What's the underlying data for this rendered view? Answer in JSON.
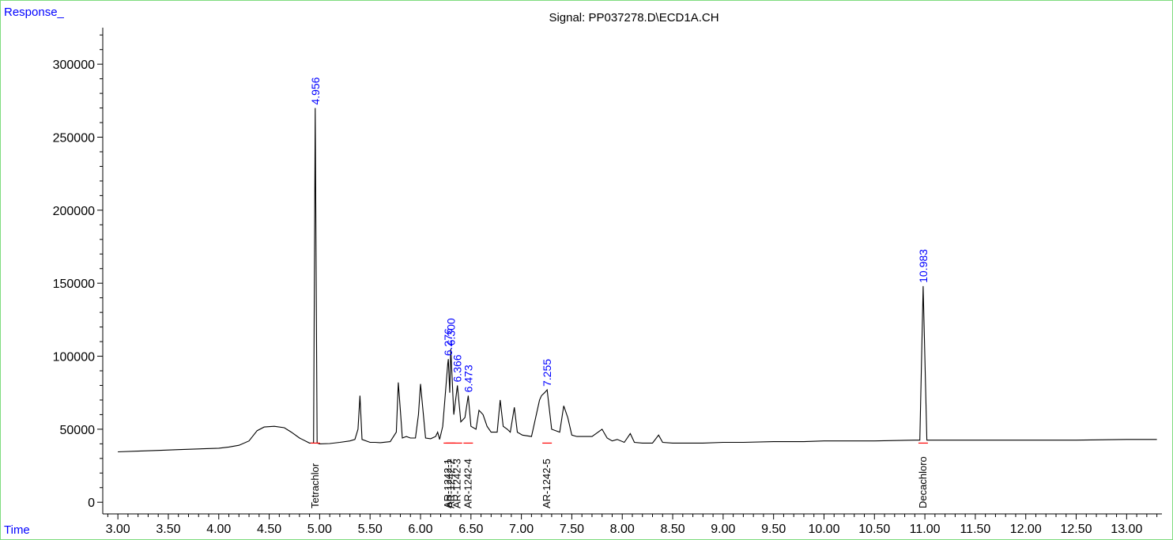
{
  "chart_data": {
    "type": "line",
    "title": "Signal: PP037278.D\\ECD1A.CH",
    "ylabel": "Response_",
    "xlabel": "Time",
    "xlim": [
      2.85,
      13.35
    ],
    "ylim": [
      -8000,
      325000
    ],
    "x_ticks": [
      "3.00",
      "3.50",
      "4.00",
      "4.50",
      "5.00",
      "5.50",
      "6.00",
      "6.50",
      "7.00",
      "7.50",
      "8.00",
      "8.50",
      "9.00",
      "9.50",
      "10.00",
      "10.50",
      "11.00",
      "11.50",
      "12.00",
      "12.50",
      "13.00"
    ],
    "y_ticks": [
      "0",
      "50000",
      "100000",
      "150000",
      "200000",
      "250000",
      "300000"
    ],
    "series": [
      {
        "x": [
          3.0,
          3.2,
          3.4,
          3.6,
          3.8,
          4.0,
          4.1,
          4.2,
          4.3,
          4.38,
          4.45,
          4.55,
          4.65,
          4.72,
          4.8,
          4.9,
          4.94,
          4.956,
          4.975,
          5.0,
          5.1,
          5.2,
          5.3,
          5.35,
          5.38,
          5.4,
          5.42,
          5.5,
          5.55,
          5.6,
          5.7,
          5.76,
          5.78,
          5.8,
          5.82,
          5.86,
          5.9,
          5.95,
          5.98,
          6.0,
          6.05,
          6.1,
          6.15,
          6.17,
          6.19,
          6.22,
          6.27,
          6.276,
          6.29,
          6.3,
          6.33,
          6.366,
          6.4,
          6.44,
          6.473,
          6.5,
          6.55,
          6.58,
          6.62,
          6.66,
          6.7,
          6.76,
          6.79,
          6.82,
          6.86,
          6.89,
          6.93,
          6.96,
          7.01,
          7.1,
          7.18,
          7.2,
          7.23,
          7.255,
          7.3,
          7.38,
          7.42,
          7.46,
          7.5,
          7.55,
          7.62,
          7.7,
          7.74,
          7.8,
          7.85,
          7.9,
          7.95,
          8.02,
          8.08,
          8.12,
          8.2,
          8.3,
          8.36,
          8.4,
          8.5,
          8.6,
          8.8,
          9.0,
          9.2,
          9.5,
          9.8,
          10.0,
          10.5,
          10.9,
          10.95,
          10.983,
          11.02,
          11.1,
          11.5,
          12.0,
          12.5,
          13.0,
          13.3
        ],
        "y": [
          34500,
          35000,
          35500,
          36000,
          36500,
          37000,
          37800,
          39000,
          42000,
          49000,
          51500,
          52000,
          51000,
          48000,
          44000,
          40500,
          40500,
          270000,
          40500,
          40000,
          40200,
          41000,
          42000,
          43000,
          50000,
          73000,
          43000,
          41000,
          41000,
          40800,
          41500,
          48000,
          82000,
          63000,
          44000,
          45000,
          44000,
          44000,
          60000,
          81000,
          44000,
          43500,
          45000,
          48000,
          43000,
          52000,
          95000,
          98000,
          75000,
          105000,
          60000,
          80000,
          55000,
          58000,
          73000,
          52000,
          50000,
          63000,
          60000,
          52000,
          48000,
          48000,
          70000,
          52000,
          50000,
          48000,
          65000,
          48000,
          46000,
          45000,
          70000,
          73000,
          75000,
          77000,
          50000,
          48000,
          66000,
          58000,
          46000,
          45000,
          45000,
          45000,
          47000,
          50000,
          44000,
          42000,
          43000,
          41000,
          47000,
          41000,
          40500,
          40500,
          46000,
          41000,
          40500,
          40500,
          40500,
          41000,
          41000,
          41500,
          41500,
          42000,
          42000,
          42500,
          42500,
          148000,
          42500,
          42500,
          42500,
          42500,
          42500,
          43000,
          43000
        ]
      }
    ],
    "peak_labels": [
      {
        "x": 4.956,
        "y": 270000,
        "label": "4.956"
      },
      {
        "x": 6.276,
        "y": 98000,
        "label": "6.276"
      },
      {
        "x": 6.3,
        "y": 105000,
        "label": "6.300"
      },
      {
        "x": 6.366,
        "y": 80000,
        "label": "6.366"
      },
      {
        "x": 6.473,
        "y": 73000,
        "label": "6.473"
      },
      {
        "x": 7.255,
        "y": 77000,
        "label": "7.255"
      },
      {
        "x": 10.983,
        "y": 148000,
        "label": "10.983"
      }
    ],
    "compound_labels": [
      {
        "x": 4.956,
        "label": "Tetrachlor"
      },
      {
        "x": 6.276,
        "label": "AR-1242-1"
      },
      {
        "x": 6.3,
        "label": "AR-1242-2"
      },
      {
        "x": 6.366,
        "label": "AR-1242-3"
      },
      {
        "x": 6.473,
        "label": "AR-1242-4"
      },
      {
        "x": 7.255,
        "label": "AR-1242-5"
      },
      {
        "x": 10.983,
        "label": "Decachloro"
      }
    ],
    "colors": {
      "trace": "#000000",
      "peak_label": "#0000ff",
      "baseline": "#ff0000",
      "axis_title": "#0000ff",
      "frame": "#7fdc7f"
    },
    "grid": false
  }
}
